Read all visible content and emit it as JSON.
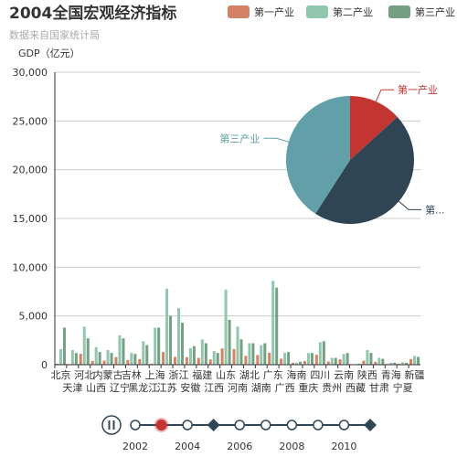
{
  "colors": {
    "primary": "#c23531",
    "secondary": "#2f4554",
    "tertiary": "#61a0a8",
    "bar_primary": "#d48265",
    "bar_secondary": "#91c7ae",
    "bar_tertiary": "#749f83",
    "timeline": "#304654",
    "timeline_checkpoint": "#c23531"
  },
  "timeline": {
    "labels": [
      "2002",
      "2004",
      "2006",
      "2008",
      "2010"
    ],
    "years": [
      2002,
      2003,
      2004,
      2005,
      2006,
      2007,
      2008,
      2009,
      2010,
      2011
    ],
    "current_index": 1,
    "diamond_indices": [
      3,
      9
    ],
    "play_state": "paused"
  },
  "chart_data": {
    "type": "bar",
    "title": "2004全国宏观经济指标",
    "subtitle": "数据来自国家统计局",
    "ylabel": "GDP（亿元）",
    "ylim": [
      0,
      30000
    ],
    "yticks": [
      0,
      5000,
      10000,
      15000,
      20000,
      25000,
      30000
    ],
    "grid": true,
    "legend_position": "top-right",
    "categories_top": [
      "北京",
      "河北",
      "内蒙古",
      "吉林",
      "上海",
      "浙江",
      "福建",
      "山东",
      "湖北",
      "广东",
      "海南",
      "四川",
      "云南",
      "陕西",
      "青海",
      "新疆"
    ],
    "categories_bottom": [
      "天津",
      "山西",
      "辽宁",
      "黑龙江",
      "江苏",
      "安徽",
      "江西",
      "河南",
      "湖南",
      "广西",
      "重庆",
      "贵州",
      "西藏",
      "甘肃",
      "宁夏"
    ],
    "categories": [
      "北京",
      "天津",
      "河北",
      "山西",
      "内蒙古",
      "辽宁",
      "吉林",
      "黑龙江",
      "上海",
      "江苏",
      "浙江",
      "安徽",
      "福建",
      "江西",
      "山东",
      "河南",
      "湖北",
      "湖南",
      "广东",
      "广西",
      "海南",
      "重庆",
      "四川",
      "贵州",
      "云南",
      "西藏",
      "陕西",
      "甘肃",
      "青海",
      "宁夏",
      "新疆"
    ],
    "series": [
      {
        "name": "第一产业",
        "values": [
          95,
          64,
          1120,
          390,
          420,
          780,
          480,
          580,
          100,
          1300,
          800,
          770,
          700,
          540,
          1670,
          1600,
          900,
          990,
          1230,
          620,
          200,
          380,
          1020,
          330,
          550,
          50,
          410,
          300,
          80,
          100,
          580
        ]
      },
      {
        "name": "第二产业",
        "values": [
          1600,
          1500,
          3900,
          1800,
          1500,
          3000,
          1200,
          2400,
          3800,
          7800,
          5800,
          1700,
          2600,
          1400,
          7700,
          3900,
          2200,
          2000,
          8600,
          1200,
          200,
          1200,
          2300,
          700,
          1100,
          50,
          1500,
          700,
          200,
          250,
          900
        ]
      },
      {
        "name": "第三产业",
        "values": [
          3800,
          1200,
          2700,
          1300,
          1200,
          2700,
          1100,
          2000,
          3800,
          5000,
          4300,
          1900,
          2200,
          1200,
          4600,
          2600,
          2200,
          2200,
          7900,
          1300,
          300,
          1200,
          2400,
          700,
          1200,
          100,
          1200,
          600,
          200,
          200,
          800
        ]
      }
    ],
    "pie": {
      "slices": [
        {
          "name": "第一产业",
          "value": 20955
        },
        {
          "name": "第二产业",
          "value": 72387
        },
        {
          "name": "第三产业",
          "value": 64561
        }
      ],
      "labels_visible": [
        "第一产业",
        "第三产业",
        "第..."
      ]
    }
  }
}
